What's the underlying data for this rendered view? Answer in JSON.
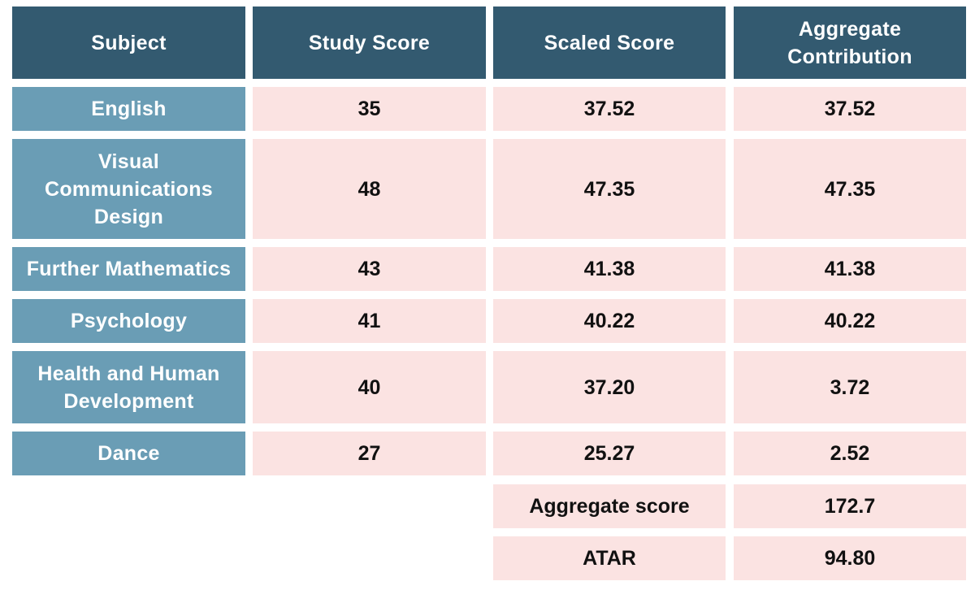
{
  "table": {
    "headers": {
      "subject": "Subject",
      "study_score": "Study Score",
      "scaled_score": "Scaled Score",
      "aggregate_contribution": "Aggregate Contribution"
    },
    "rows": [
      {
        "subject": "English",
        "study_score": "35",
        "scaled_score": "37.52",
        "aggregate_contribution": "37.52"
      },
      {
        "subject": "Visual Communications Design",
        "study_score": "48",
        "scaled_score": "47.35",
        "aggregate_contribution": "47.35"
      },
      {
        "subject": "Further Mathematics",
        "study_score": "43",
        "scaled_score": "41.38",
        "aggregate_contribution": "41.38"
      },
      {
        "subject": "Psychology",
        "study_score": "41",
        "scaled_score": "40.22",
        "aggregate_contribution": "40.22"
      },
      {
        "subject": "Health and Human Development",
        "study_score": "40",
        "scaled_score": "37.20",
        "aggregate_contribution": "3.72"
      },
      {
        "subject": "Dance",
        "study_score": "27",
        "scaled_score": "25.27",
        "aggregate_contribution": "2.52"
      }
    ],
    "summary": {
      "aggregate_label": "Aggregate score",
      "aggregate_value": "172.7",
      "atar_label": "ATAR",
      "atar_value": "94.80"
    }
  },
  "colors": {
    "header_bg": "#335a70",
    "subject_bg": "#6a9db5",
    "value_bg": "#fbe3e2"
  }
}
